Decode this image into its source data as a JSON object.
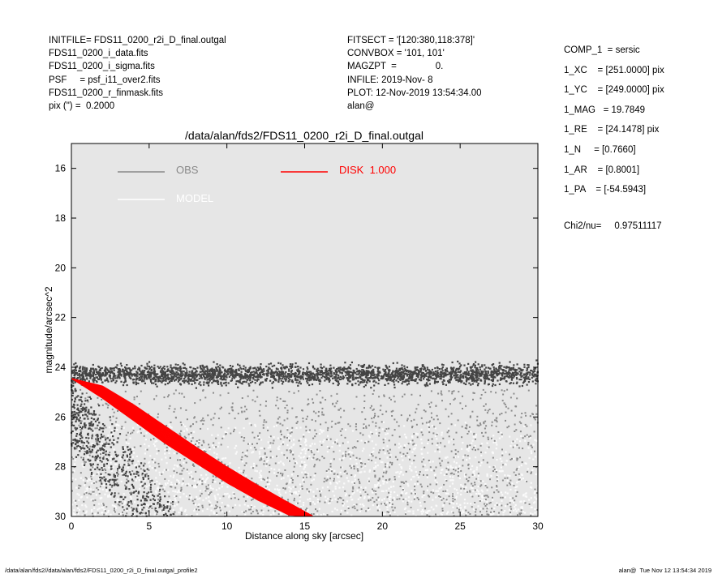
{
  "header": {
    "left_lines": [
      "INITFILE= FDS11_0200_r2i_D_final.outgal",
      "FDS11_0200_i_data.fits",
      "FDS11_0200_i_sigma.fits",
      "PSF     = psf_i11_over2.fits",
      "FDS11_0200_r_finmask.fits",
      "pix (\") =  0.2000"
    ],
    "middle_lines": [
      "FITSECT = '[120:380,118:378]'",
      "CONVBOX = '101, 101'",
      "MAGZPT  =               0.",
      "INFILE: 2019-Nov- 8",
      "PLOT: 12-Nov-2019 13:54:34.00",
      "alan@"
    ],
    "right_lines": [
      "COMP_1  = sersic",
      "1_XC    = [251.0000] pix",
      "1_YC    = [249.0000] pix",
      "1_MAG   = 19.7849",
      "1_RE    = [24.1478] pix",
      "1_N     = [0.7660]",
      "1_AR    = [0.8001]",
      "1_PA    = [-54.5943]"
    ],
    "chi2": "Chi2/nu=     0.97511117"
  },
  "footer": {
    "left": "/data/alan/fds2//data/alan/fds2/FDS11_0200_r2i_D_final.outgal_profile2",
    "right": "alan@  Tue Nov 12 13:54:34 2019"
  },
  "colors": {
    "plot_bg": "#e6e6e6",
    "obs": "#888888",
    "model": "#ffffff",
    "disk": "#ff0000",
    "dark_points": "#444444",
    "mid_points": "#8c8c8c",
    "light_points": "#fafafa"
  },
  "chart_data": {
    "type": "scatter",
    "title": "/data/alan/fds2/FDS11_0200_r2i_D_final.outgal",
    "xlabel": "Distance along sky [arcsec]",
    "ylabel": "magnitude/arcsec^2",
    "xlim": [
      0,
      30
    ],
    "ylim": [
      30,
      15
    ],
    "y_inverted": true,
    "xticks": [
      0,
      5,
      10,
      15,
      20,
      25,
      30
    ],
    "yticks": [
      16,
      18,
      20,
      22,
      24,
      26,
      28,
      30
    ],
    "grid": false,
    "legend": [
      {
        "label": "OBS",
        "color": "#888888"
      },
      {
        "label": "MODEL",
        "color": "#ffffff"
      },
      {
        "label": "DISK  1.000",
        "color": "#ff0000"
      }
    ],
    "series": [
      {
        "name": "OBS",
        "description": "dense dark background band near 24.3 mag/arcsec^2, plus a descending dark cloud at small radius and scattered gray points spreading to fainter magnitudes",
        "band_level": 24.3,
        "band_width": 0.7,
        "band_x": [
          0,
          30
        ]
      },
      {
        "name": "DISK  1.000",
        "envelope_upper": {
          "x": [
            0,
            2,
            4,
            6,
            8,
            10,
            12,
            14
          ],
          "y": [
            24.45,
            24.75,
            25.5,
            26.35,
            27.2,
            28.0,
            28.75,
            29.45
          ]
        },
        "envelope_lower": {
          "x": [
            0,
            2,
            4,
            6,
            8,
            10,
            12,
            14,
            15
          ],
          "y": [
            24.45,
            25.25,
            26.15,
            27.05,
            27.85,
            28.65,
            29.35,
            29.95,
            30.0
          ]
        }
      }
    ]
  }
}
